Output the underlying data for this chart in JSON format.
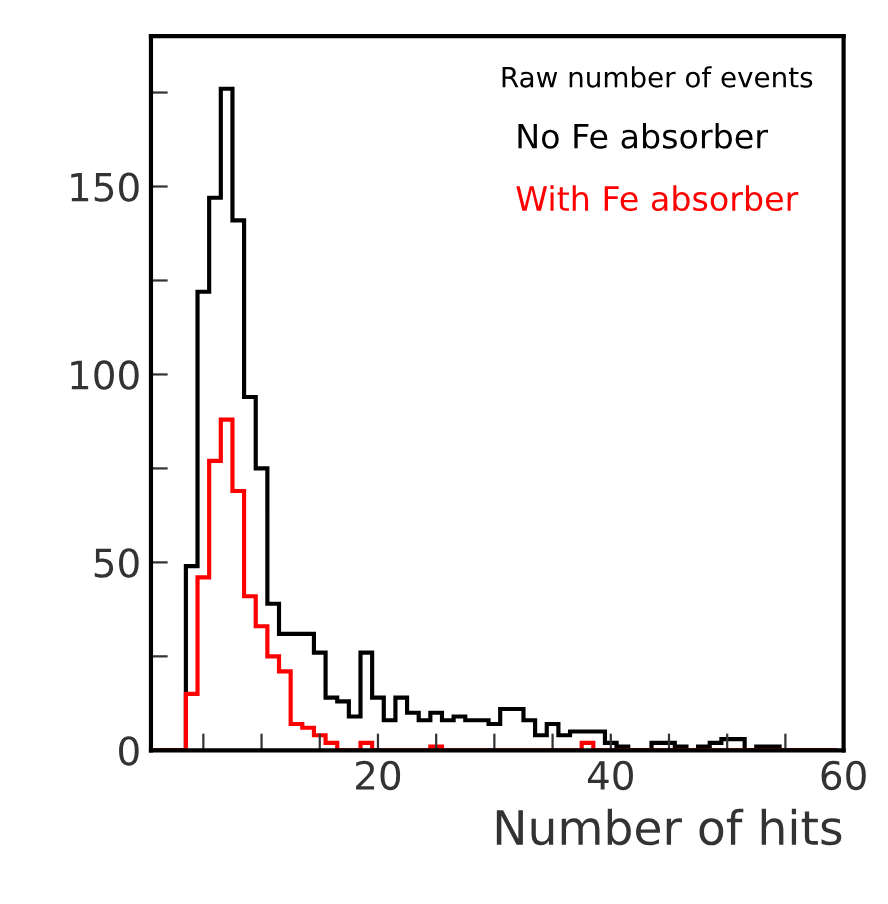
{
  "chart_data": {
    "type": "histogram",
    "xlabel": "Number of hits",
    "legend_title": "Raw number of events",
    "legend": "top right",
    "bins": [
      0.5,
      1.5,
      2.5,
      3.5,
      4.5,
      5.5,
      6.5,
      7.5,
      8.5,
      9.5,
      10.5,
      11.5,
      12.5,
      13.5,
      14.5,
      15.5,
      16.5,
      17.5,
      18.5,
      19.5,
      20.5,
      21.5,
      22.5,
      23.5,
      24.5,
      25.5,
      26.5,
      27.5,
      28.5,
      29.5,
      30.5,
      31.5,
      32.5,
      33.5,
      34.5,
      35.5,
      36.5,
      37.5,
      38.5,
      39.5,
      40.5,
      41.5,
      42.5,
      43.5,
      44.5,
      45.5,
      46.5,
      47.5,
      48.5,
      49.5,
      50.5,
      51.5,
      52.5,
      53.5,
      54.5,
      55.5,
      56.5,
      57.5,
      58.5,
      59.5
    ],
    "series": [
      {
        "name": "No Fe absorber",
        "color": "#000000",
        "values": [
          0,
          0,
          0,
          49,
          122,
          147,
          176,
          141,
          94,
          75,
          39,
          31,
          31,
          31,
          26,
          14,
          13,
          9,
          26,
          14,
          8,
          14,
          10,
          8,
          10,
          8,
          9,
          8,
          8,
          7,
          11,
          11,
          8,
          4,
          7,
          4,
          5,
          5,
          5,
          2,
          1,
          0,
          0,
          2,
          2,
          1,
          0,
          1,
          2,
          3,
          3,
          0,
          1,
          1,
          0,
          0,
          0,
          0,
          0
        ]
      },
      {
        "name": "With Fe absorber",
        "color": "#ff0000",
        "values": [
          0,
          0,
          0,
          15,
          46,
          77,
          88,
          69,
          41,
          33,
          25,
          21,
          7,
          6,
          4,
          2,
          0,
          0,
          2,
          0,
          0,
          0,
          0,
          0,
          1,
          0,
          0,
          0,
          0,
          0,
          0,
          0,
          0,
          0,
          0,
          0,
          0,
          2,
          0,
          0,
          0,
          0,
          0,
          0,
          0,
          0,
          0,
          0,
          0,
          0,
          0,
          0,
          0,
          0,
          0,
          0,
          0,
          0,
          0
        ]
      }
    ],
    "xlim": [
      0.5,
      60
    ],
    "xticks": [
      {
        "value": 5,
        "label": null
      },
      {
        "value": 10,
        "label": null
      },
      {
        "value": 15,
        "label": null
      },
      20,
      {
        "value": 25,
        "label": null
      },
      {
        "value": 30,
        "label": null
      },
      {
        "value": 35,
        "label": null
      },
      40,
      {
        "value": 45,
        "label": null
      },
      {
        "value": 50,
        "label": null
      },
      {
        "value": 55,
        "label": null
      },
      60
    ],
    "ylim": [
      0,
      190
    ],
    "yticks": [
      0,
      {
        "value": 25,
        "label": null
      },
      50,
      {
        "value": 75,
        "label": null
      },
      100,
      {
        "value": 125,
        "label": null
      },
      150,
      {
        "value": 175,
        "label": null
      }
    ],
    "grid": false
  }
}
